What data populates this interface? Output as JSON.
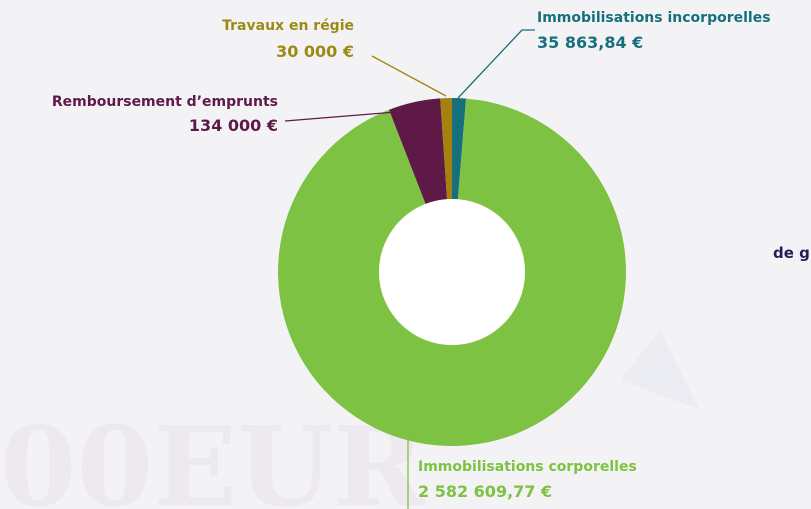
{
  "chart_data": {
    "type": "donut",
    "categories": [
      "Immobilisations incorporelles",
      "Immobilisations corporelles",
      "Remboursement d’emprunts",
      "Travaux en régie"
    ],
    "values": [
      35863.84,
      2582609.77,
      134000,
      30000
    ],
    "value_labels": [
      "35 863,84 €",
      "2 582 609,77 €",
      "134 000 €",
      "30 000 €"
    ],
    "colors": [
      "#16707c",
      "#7dc242",
      "#5f1947",
      "#a5810d"
    ],
    "label_colors": [
      "#16707c",
      "#7dc242",
      "#5f1947",
      "#9c8a12"
    ],
    "annotation": "de g"
  }
}
